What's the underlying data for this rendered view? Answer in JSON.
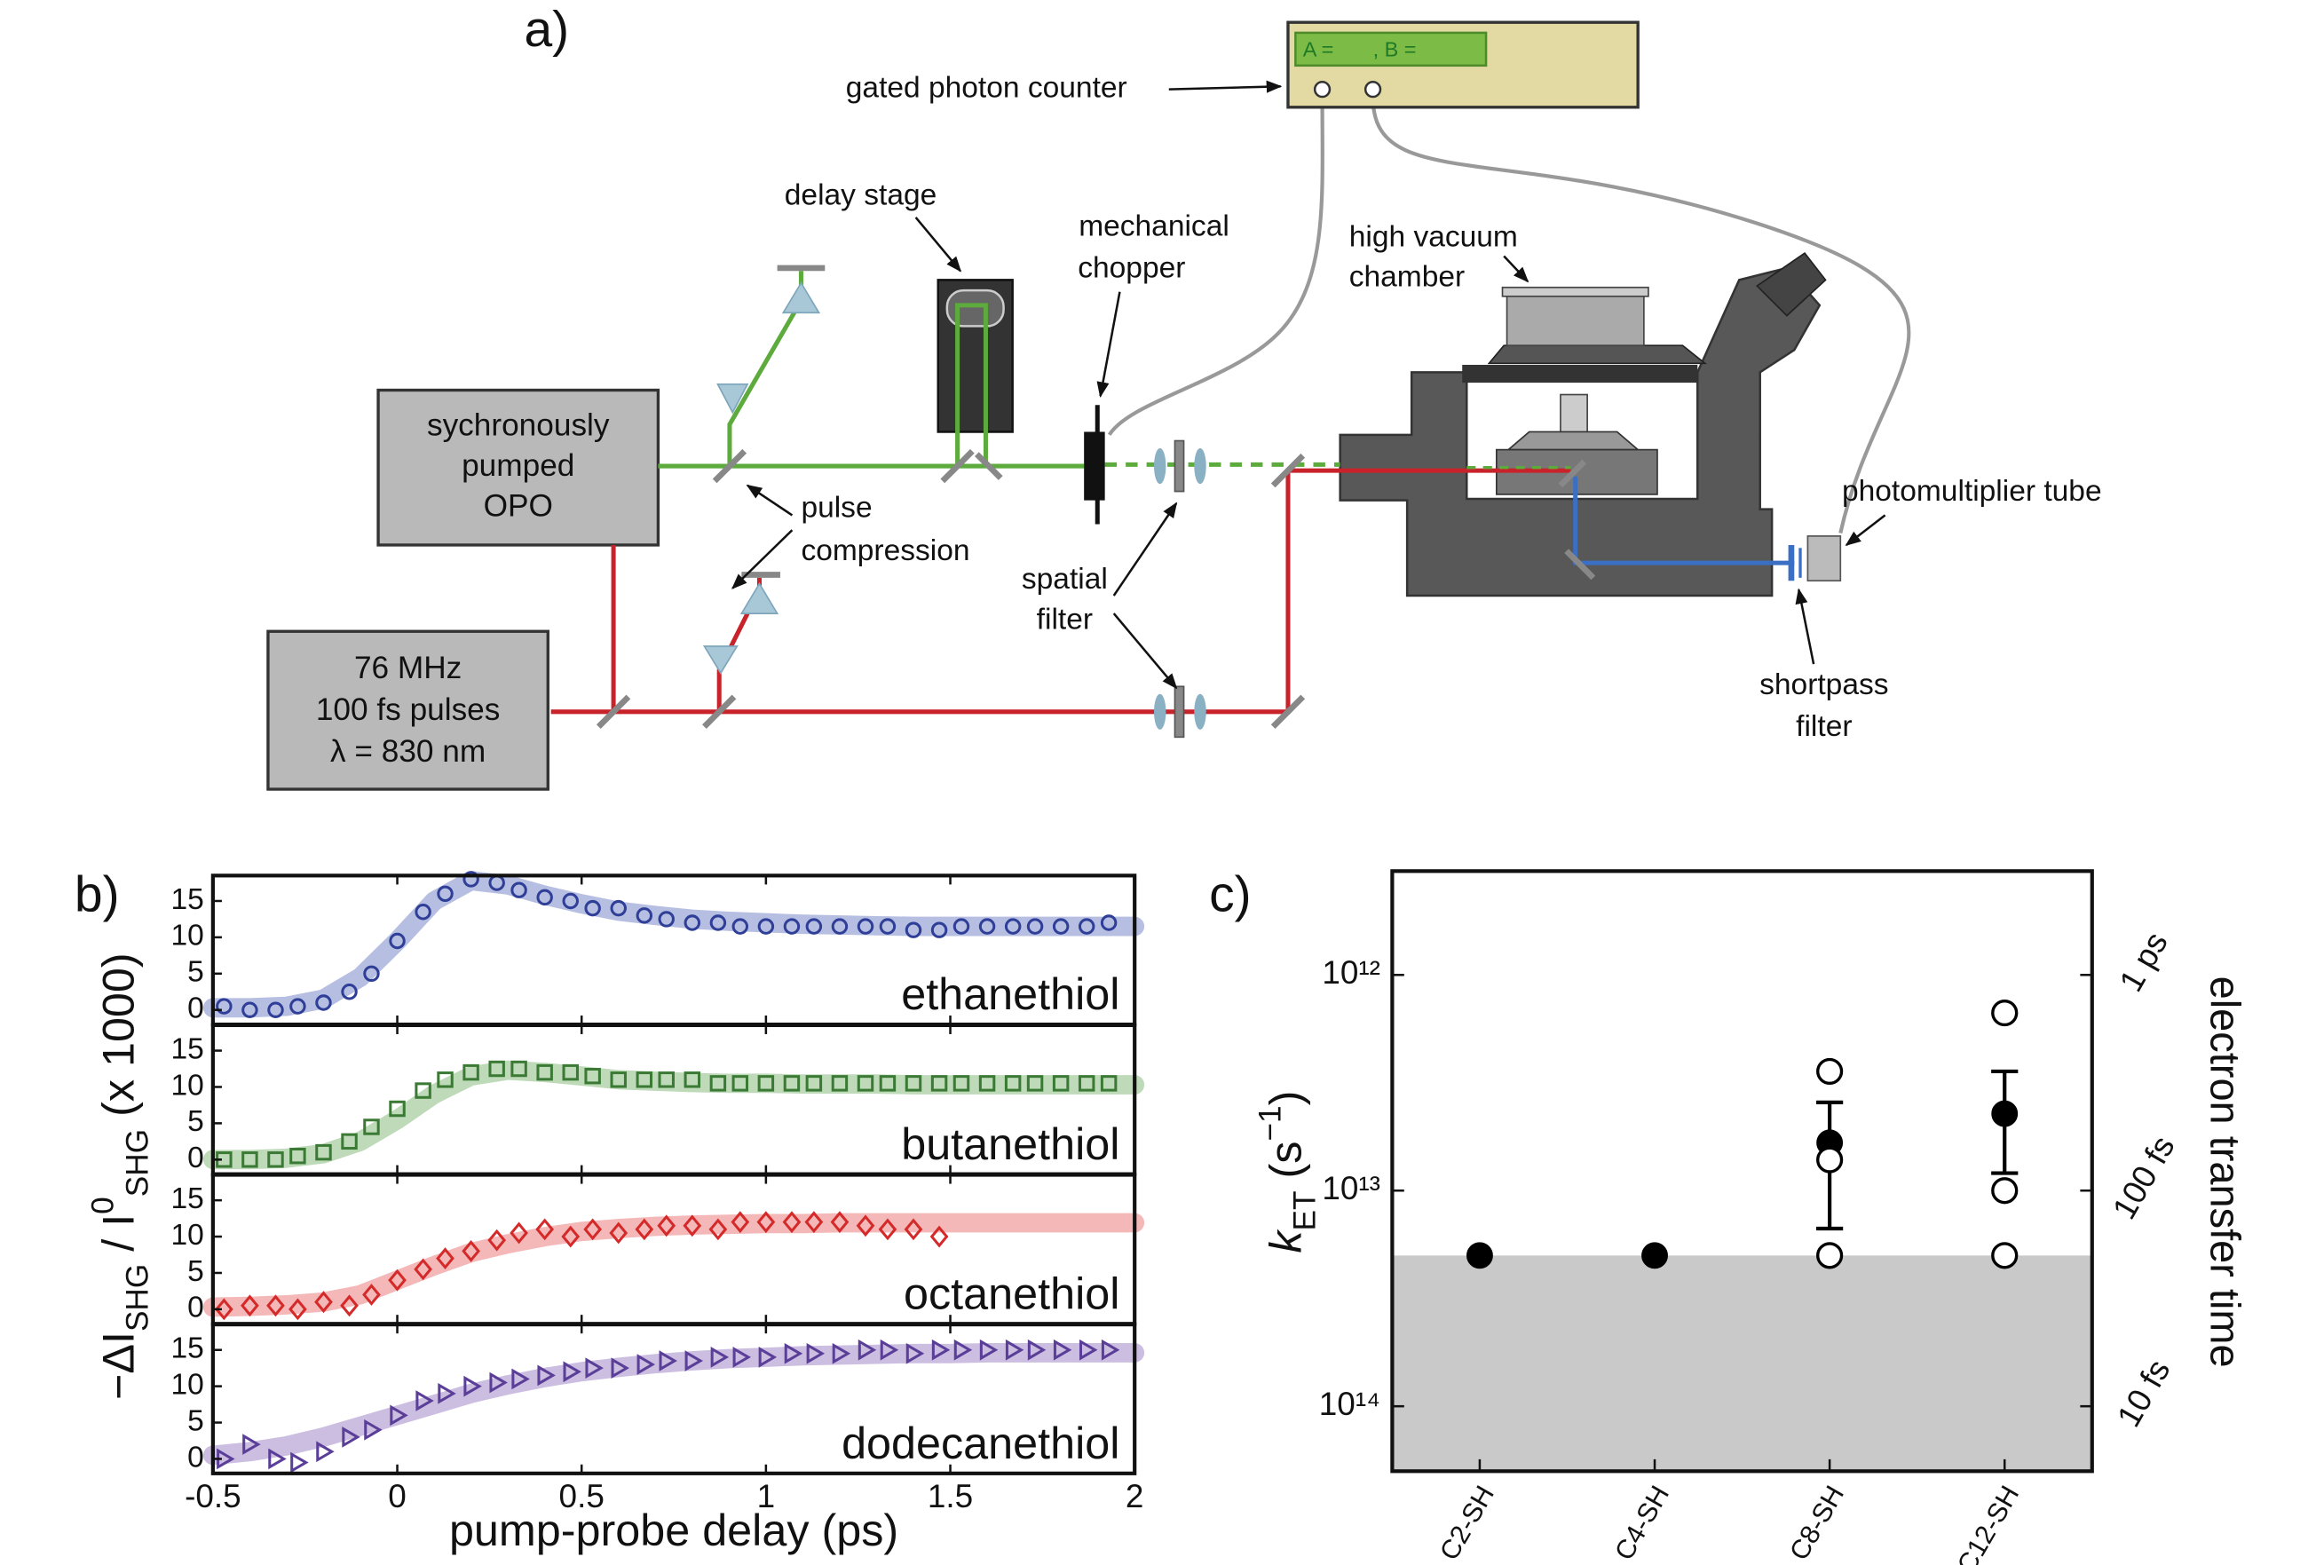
{
  "diagram": {
    "label": "a)",
    "counter": {
      "label": "gated photon counter",
      "display_a": "A =",
      "display_b": ", B ="
    },
    "delay_stage": "delay stage",
    "chopper": [
      "mechanical",
      "chopper"
    ],
    "chamber": [
      "high vacuum",
      "chamber"
    ],
    "opo": [
      "sychronously",
      "pumped",
      "OPO"
    ],
    "laser": [
      "76 MHz",
      "100 fs pulses",
      "λ = 830 nm"
    ],
    "compression": [
      "pulse",
      "compression"
    ],
    "spatial_filter": [
      "spatial",
      "filter"
    ],
    "pmt": "photomultiplier tube",
    "shortpass": [
      "shortpass",
      "filter"
    ]
  },
  "chart_data": [
    {
      "type": "scatter",
      "label": "b)",
      "annotation": "ethanethiol",
      "ylabel": [
        "−ΔI",
        "SHG",
        " / I",
        "0",
        "SHG",
        " (x 1000)"
      ],
      "marker": "circle",
      "color": "#2f3f98",
      "x": [
        -0.47,
        -0.4,
        -0.33,
        -0.27,
        -0.2,
        -0.13,
        -0.07,
        0,
        0.07,
        0.13,
        0.2,
        0.27,
        0.33,
        0.4,
        0.47,
        0.53,
        0.6,
        0.67,
        0.73,
        0.8,
        0.87,
        0.93,
        1,
        1.07,
        1.13,
        1.2,
        1.27,
        1.33,
        1.4,
        1.47,
        1.53,
        1.6,
        1.67,
        1.73,
        1.8,
        1.87,
        1.93
      ],
      "values": [
        0.5,
        0,
        0,
        0.5,
        1,
        2.5,
        5,
        9.5,
        13.5,
        16,
        18,
        17.5,
        16.5,
        15.5,
        15,
        14,
        14,
        13,
        12.5,
        12,
        12,
        11.5,
        11.5,
        11.5,
        11.5,
        11.5,
        11.5,
        11.5,
        11,
        11,
        11.5,
        11.5,
        11.5,
        11.5,
        11.5,
        11.5,
        12
      ],
      "fit": {
        "color": "#a9b3dc",
        "x": [
          -0.5,
          -0.4,
          -0.3,
          -0.2,
          -0.1,
          0,
          0.1,
          0.2,
          0.3,
          0.4,
          0.5,
          0.6,
          0.7,
          0.8,
          0.9,
          1,
          1.1,
          1.2,
          1.3,
          1.4,
          1.5,
          1.6,
          1.7,
          1.8,
          1.9,
          2
        ],
        "values": [
          0.3,
          0.3,
          0.5,
          1.5,
          4.5,
          9.5,
          15,
          17.8,
          17.2,
          15.8,
          14.6,
          13.6,
          13,
          12.5,
          12.2,
          12,
          11.8,
          11.7,
          11.6,
          11.5,
          11.5,
          11.5,
          11.5,
          11.5,
          11.5,
          11.5
        ]
      },
      "xlim": [
        -0.5,
        2
      ],
      "ylim": [
        -2,
        18.5
      ],
      "xticks": [
        -0.5,
        0,
        0.5,
        1,
        1.5,
        2
      ],
      "yticks": [
        0,
        5,
        10,
        15
      ]
    },
    {
      "type": "scatter",
      "annotation": "butanethiol",
      "marker": "square",
      "color": "#3b7a35",
      "x": [
        -0.47,
        -0.4,
        -0.33,
        -0.27,
        -0.2,
        -0.13,
        -0.07,
        0,
        0.07,
        0.13,
        0.2,
        0.27,
        0.33,
        0.4,
        0.47,
        0.53,
        0.6,
        0.67,
        0.73,
        0.8,
        0.87,
        0.93,
        1,
        1.07,
        1.13,
        1.2,
        1.27,
        1.33,
        1.4,
        1.47,
        1.53,
        1.6,
        1.67,
        1.73,
        1.8,
        1.87,
        1.93
      ],
      "values": [
        0,
        0,
        0,
        0.5,
        1,
        2.5,
        4.5,
        7,
        9.5,
        11,
        12,
        12.5,
        12.5,
        12,
        12,
        11.5,
        11,
        11,
        11,
        11,
        10.5,
        10.5,
        10.5,
        10.5,
        10.5,
        10.5,
        10.5,
        10.5,
        10.5,
        10.5,
        10.5,
        10.5,
        10.5,
        10.5,
        10.5,
        10.5,
        10.5
      ],
      "fit": {
        "color": "#b3d3ad",
        "x": [
          -0.5,
          -0.4,
          -0.3,
          -0.2,
          -0.1,
          0,
          0.1,
          0.2,
          0.3,
          0.4,
          0.5,
          0.6,
          0.7,
          0.8,
          0.9,
          1,
          1.1,
          1.2,
          1.3,
          1.4,
          1.5,
          1.6,
          1.7,
          1.8,
          1.9,
          2
        ],
        "values": [
          0,
          0,
          0.2,
          0.8,
          2.5,
          5.5,
          9,
          11.5,
          12.3,
          12,
          11.5,
          11,
          10.8,
          10.6,
          10.5,
          10.5,
          10.4,
          10.4,
          10.4,
          10.3,
          10.3,
          10.3,
          10.3,
          10.3,
          10.3,
          10.3
        ]
      },
      "xlim": [
        -0.5,
        2
      ],
      "ylim": [
        -2,
        18.5
      ],
      "xticks": [
        -0.5,
        0,
        0.5,
        1,
        1.5,
        2
      ],
      "yticks": [
        0,
        5,
        10,
        15
      ]
    },
    {
      "type": "scatter",
      "annotation": "octanethiol",
      "marker": "diamond",
      "color": "#d42a2a",
      "x": [
        -0.47,
        -0.4,
        -0.33,
        -0.27,
        -0.2,
        -0.13,
        -0.07,
        0,
        0.07,
        0.13,
        0.2,
        0.27,
        0.33,
        0.4,
        0.47,
        0.53,
        0.6,
        0.67,
        0.73,
        0.8,
        0.87,
        0.93,
        1,
        1.07,
        1.13,
        1.2,
        1.27,
        1.33,
        1.4,
        1.47,
        1.53,
        1.6,
        1.67,
        1.73,
        1.8,
        1.87,
        1.93
      ],
      "values": [
        0,
        0.5,
        0.5,
        0,
        1,
        0.5,
        2,
        4,
        5.5,
        7,
        8,
        9.5,
        10.5,
        11,
        10,
        11,
        10.5,
        11,
        11.5,
        11.5,
        11,
        12,
        12,
        12,
        12,
        12,
        11.5,
        11,
        11,
        10,
        null,
        null,
        null,
        null,
        null,
        null,
        null
      ],
      "fit": {
        "color": "#f2abab",
        "x": [
          -0.5,
          -0.4,
          -0.3,
          -0.2,
          -0.1,
          0,
          0.1,
          0.2,
          0.3,
          0.4,
          0.5,
          0.6,
          0.7,
          0.8,
          0.9,
          1,
          1.1,
          1.2,
          1.3,
          1.4,
          1.5,
          1.6,
          1.7,
          1.8,
          1.9,
          2
        ],
        "values": [
          0.3,
          0.4,
          0.6,
          1,
          2,
          4,
          6,
          7.8,
          9,
          10,
          10.7,
          11.1,
          11.4,
          11.6,
          11.7,
          11.8,
          11.8,
          11.9,
          11.9,
          11.9,
          11.9,
          11.9,
          11.9,
          11.9,
          11.9,
          11.9
        ]
      },
      "xlim": [
        -0.5,
        2
      ],
      "ylim": [
        -2,
        18.5
      ],
      "xticks": [
        -0.5,
        0,
        0.5,
        1,
        1.5,
        2
      ],
      "yticks": [
        0,
        5,
        10,
        15
      ]
    },
    {
      "type": "scatter",
      "annotation": "dodecanethiol",
      "xlabel": "pump-probe delay (ps)",
      "marker": "triangle",
      "color": "#5a3e98",
      "x": [
        -0.47,
        -0.4,
        -0.33,
        -0.27,
        -0.2,
        -0.13,
        -0.07,
        0,
        0.07,
        0.13,
        0.2,
        0.27,
        0.33,
        0.4,
        0.47,
        0.53,
        0.6,
        0.67,
        0.73,
        0.8,
        0.87,
        0.93,
        1,
        1.07,
        1.13,
        1.2,
        1.27,
        1.33,
        1.4,
        1.47,
        1.53,
        1.6,
        1.67,
        1.73,
        1.8,
        1.87,
        1.93
      ],
      "values": [
        0,
        2,
        0,
        -0.5,
        1,
        3,
        4,
        6,
        8,
        9,
        10,
        10.5,
        11,
        11.5,
        12,
        12.5,
        12.5,
        13,
        13.5,
        13.5,
        14,
        14,
        14,
        14.5,
        14.5,
        14.5,
        15,
        15,
        14.5,
        15,
        15,
        15,
        15,
        15,
        15,
        15,
        15
      ],
      "fit": {
        "color": "#c2b3da",
        "x": [
          -0.5,
          -0.4,
          -0.3,
          -0.2,
          -0.1,
          0,
          0.1,
          0.2,
          0.3,
          0.4,
          0.5,
          0.6,
          0.7,
          0.8,
          0.9,
          1,
          1.1,
          1.2,
          1.3,
          1.4,
          1.5,
          1.6,
          1.7,
          1.8,
          1.9,
          2
        ],
        "values": [
          0.5,
          1,
          1.8,
          3,
          4.5,
          6,
          7.5,
          9,
          10.2,
          11.2,
          12,
          12.6,
          13.1,
          13.5,
          13.8,
          14,
          14.2,
          14.3,
          14.4,
          14.5,
          14.5,
          14.6,
          14.6,
          14.6,
          14.6,
          14.6
        ]
      },
      "xlim": [
        -0.5,
        2
      ],
      "ylim": [
        -2,
        18.5
      ],
      "xticks": [
        -0.5,
        0,
        0.5,
        1,
        1.5,
        2
      ],
      "yticks": [
        0,
        5,
        10,
        15
      ]
    },
    {
      "type": "scatter",
      "label": "c)",
      "categories": [
        "C2-SH",
        "C4-SH",
        "C8-SH",
        "C12-SH"
      ],
      "ylabel": [
        "k",
        "ET",
        " (s",
        "−1",
        ")"
      ],
      "y2label": "electron transfer time",
      "log": true,
      "y_inverted": true,
      "ylim": [
        330000000000,
        200000000000000
      ],
      "yticks": [
        {
          "value": 1000000000000,
          "label": "10¹²"
        },
        {
          "value": 10000000000000,
          "label": "10¹³"
        },
        {
          "value": 100000000000000,
          "label": "10¹⁴"
        }
      ],
      "y2lim": [
        3030,
        5
      ],
      "y2ticks": [
        {
          "value": 1000,
          "label": "1 ps"
        },
        {
          "value": 100,
          "label": "100 fs"
        },
        {
          "value": 10,
          "label": "10 fs"
        }
      ],
      "shade": {
        "from": 20000000000000,
        "to": 200000000000000,
        "color": "#c9c9c9"
      },
      "series": [
        {
          "marker": "filled",
          "color": "#000000",
          "values": [
            20000000000000,
            20000000000000,
            6000000000000,
            4400000000000
          ],
          "error_low": [
            null,
            null,
            3900000000000,
            2800000000000
          ],
          "error_high": [
            null,
            null,
            15000000000000,
            8300000000000
          ]
        },
        {
          "marker": "open",
          "color": "#000000",
          "values": [
            null,
            null,
            2800000000000,
            1500000000000
          ]
        },
        {
          "marker": "open",
          "color": "#000000",
          "values": [
            null,
            null,
            7200000000000,
            10000000000000
          ]
        },
        {
          "marker": "open",
          "color": "#000000",
          "values": [
            null,
            null,
            20000000000000,
            20000000000000
          ]
        }
      ]
    }
  ]
}
